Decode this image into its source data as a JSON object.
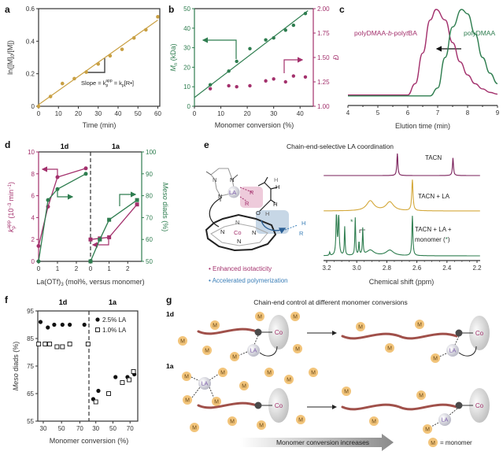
{
  "panel_labels": {
    "a": "a",
    "b": "b",
    "c": "c",
    "d": "d",
    "e": "e",
    "f": "f",
    "g": "g"
  },
  "colors": {
    "gold": "#c9a043",
    "green": "#2e7d4f",
    "magenta": "#a3306c",
    "purple": "#7a1f5a",
    "blue": "#3c7fb8",
    "chain": "#a0504a",
    "monomer": "#f2c47a"
  },
  "chart_data": [
    {
      "panel": "a",
      "type": "scatter",
      "xlabel": "Time (min)",
      "ylabel": {
        "pre": "ln([M]",
        "sub": "0",
        "post": "/[M])"
      },
      "xlim": [
        0,
        61
      ],
      "ylim": [
        0,
        0.6
      ],
      "xticks": [
        "0",
        "10",
        "20",
        "30",
        "40",
        "50",
        "60"
      ],
      "yticks": [
        "0",
        "0.2",
        "0.4",
        "0.6"
      ],
      "series": [
        {
          "x": [
            0,
            6,
            12,
            18,
            24,
            30,
            36,
            42,
            48,
            54,
            60
          ],
          "y": [
            0,
            0.06,
            0.14,
            0.17,
            0.21,
            0.26,
            0.31,
            0.35,
            0.42,
            0.47,
            0.55
          ],
          "color": "#c9a043"
        }
      ],
      "fit_line": {
        "x": [
          0,
          60
        ],
        "y": [
          0.01,
          0.53
        ]
      },
      "annotation": {
        "t1": "Slope = k",
        "s1": "p",
        "sup1": "app",
        "t2": " = k",
        "s2": "p",
        "t3": "[R•]"
      }
    },
    {
      "panel": "b",
      "type": "scatter",
      "xlabel": "Monomer conversion (%)",
      "ylabel": {
        "pre": "M",
        "sub": "n",
        "post": " (kDa)"
      },
      "ylabel_right": "Đ",
      "xlim": [
        0,
        45
      ],
      "ylim": [
        0,
        50
      ],
      "ylim_right": [
        1,
        2
      ],
      "xticks": [
        "0",
        "10",
        "20",
        "30",
        "40"
      ],
      "yticks": [
        "0",
        "10",
        "20",
        "30",
        "40",
        "50"
      ],
      "yticks_right": [
        "1.00",
        "1.25",
        "1.50",
        "1.75",
        "2.00"
      ],
      "series": [
        {
          "axis": "left",
          "x": [
            6,
            13,
            16,
            21,
            27,
            30,
            34.5,
            37.5,
            42
          ],
          "y": [
            11,
            18,
            23,
            29.5,
            34,
            35,
            39,
            41.5,
            47.5
          ],
          "color": "#2e7d4f"
        },
        {
          "axis": "right",
          "x": [
            6,
            13,
            16,
            21,
            27,
            30,
            34.5,
            37.5,
            42
          ],
          "y": [
            1.18,
            1.21,
            1.2,
            1.21,
            1.26,
            1.28,
            1.25,
            1.31,
            1.3
          ],
          "color": "#a3306c"
        }
      ],
      "fit_line": {
        "x": [
          0,
          43
        ],
        "y": [
          4.5,
          49
        ]
      }
    },
    {
      "panel": "c",
      "type": "line",
      "xlabel": "Elution time (min)",
      "xlim": [
        4,
        9
      ],
      "ylim": [
        -0.1,
        1
      ],
      "xticks": [
        "4",
        "5",
        "6",
        "7",
        "8",
        "9"
      ],
      "series": [
        {
          "name": "polyDMAA-b-polytBA",
          "color": "#a3306c",
          "x": [
            4,
            5,
            6,
            6.25,
            6.5,
            6.75,
            6.95,
            7.25,
            7.5,
            7.75,
            8,
            8.25,
            8.5,
            8.75,
            9
          ],
          "y": [
            0.02,
            0.02,
            0.02,
            0.15,
            0.5,
            0.88,
            1,
            0.88,
            0.62,
            0.4,
            0.25,
            0.15,
            0.09,
            0.05,
            0.03
          ]
        },
        {
          "name": "polyDMAA",
          "color": "#2e7d4f",
          "x": [
            4,
            5,
            6,
            6.75,
            7,
            7.25,
            7.5,
            7.8,
            8,
            8.25,
            8.5,
            8.75,
            9
          ],
          "y": [
            0.01,
            0.01,
            0.01,
            0.01,
            0.1,
            0.45,
            0.8,
            1,
            0.95,
            0.72,
            0.45,
            0.27,
            0.15
          ]
        }
      ],
      "legend": {
        "pink_label_parts": [
          "polyDMAA-",
          "b",
          "-poly",
          "t",
          "BA"
        ],
        "green_label": "polyDMAA"
      }
    },
    {
      "panel": "d",
      "type": "line",
      "xlabel": {
        "pre": "La(OTf)",
        "sub": "3",
        "post": " (mol%, versus monomer)"
      },
      "ylabel": {
        "pre": "k",
        "sub": "p",
        "sup": "app",
        "post": " (10",
        "sup2": "−3",
        "post2": " min",
        "sup3": "−1",
        "post3": ")"
      },
      "ylabel_right": {
        "italic": "Meso",
        "post": " diads (%)"
      },
      "ylim": [
        0,
        10
      ],
      "ylim_right": [
        50,
        100
      ],
      "yticks": [
        "0",
        "2",
        "4",
        "6",
        "8",
        "10"
      ],
      "yticks_right": [
        "50",
        "60",
        "70",
        "80",
        "90",
        "100"
      ],
      "groups": [
        {
          "name": "1d",
          "xlim": [
            0,
            2.75
          ],
          "xticks": [
            "0",
            "1",
            "2"
          ],
          "series": [
            {
              "axis": "left",
              "marker": "circle",
              "color": "#a3306c",
              "x": [
                0,
                0.5,
                1,
                2.5
              ],
              "y": [
                1.4,
                5.0,
                7.7,
                8.5
              ]
            },
            {
              "axis": "right",
              "marker": "circle",
              "color": "#2e7d4f",
              "x": [
                0,
                0.5,
                1,
                2.5
              ],
              "y": [
                50,
                78,
                83,
                90
              ]
            }
          ]
        },
        {
          "name": "1a",
          "xlim": [
            0,
            2.75
          ],
          "xticks": [
            "0",
            "1",
            "2"
          ],
          "series": [
            {
              "axis": "left",
              "marker": "square",
              "color": "#a3306c",
              "x": [
                0,
                0.5,
                1,
                2.5
              ],
              "y": [
                2.0,
                2.1,
                2.2,
                5.2
              ]
            },
            {
              "axis": "right",
              "marker": "square",
              "color": "#2e7d4f",
              "x": [
                0,
                0.5,
                1,
                2.5
              ],
              "y": [
                50,
                60,
                69,
                78
              ]
            }
          ]
        }
      ]
    },
    {
      "panel": "e",
      "type": "line",
      "title": "Chain-end-selective LA coordination",
      "xlabel": "Chemical shift (ppm)",
      "xlim": [
        3.2,
        2.2
      ],
      "xticks": [
        "3.2",
        "3.0",
        "2.8",
        "2.6",
        "2.4",
        "2.2"
      ],
      "series": [
        {
          "name": "TACN",
          "color": "#7a1f5a",
          "peaks": [
            {
              "ppm": 2.73,
              "h": 1.0,
              "w": 0.004
            },
            {
              "ppm": 2.36,
              "h": 0.8,
              "w": 0.004
            }
          ]
        },
        {
          "name": "TACN + LA",
          "color": "#d4a83a",
          "peaks": [
            {
              "ppm": 2.91,
              "h": 0.45,
              "w": 0.03
            },
            {
              "ppm": 2.78,
              "h": 0.4,
              "w": 0.03
            },
            {
              "ppm": 2.63,
              "h": 1.4,
              "w": 0.005
            }
          ]
        },
        {
          "name": "TACN + LA + monomer (*)",
          "color": "#2e7d4f",
          "peaks": [
            {
              "ppm": 3.18,
              "h": 0.15,
              "w": 0.003
            },
            {
              "ppm": 3.135,
              "h": 1.9,
              "w": 0.004
            },
            {
              "ppm": 3.12,
              "h": 1.9,
              "w": 0.004
            },
            {
              "ppm": 3.08,
              "h": 1.3,
              "w": 0.003
            },
            {
              "ppm": 3.01,
              "h": 1.7,
              "w": 0.003
            },
            {
              "ppm": 2.985,
              "h": 0.6,
              "w": 0.003
            },
            {
              "ppm": 2.96,
              "h": 1.2,
              "w": 0.003
            },
            {
              "ppm": 2.91,
              "h": 0.25,
              "w": 0.03
            },
            {
              "ppm": 2.78,
              "h": 0.25,
              "w": 0.03
            },
            {
              "ppm": 2.63,
              "h": 1.8,
              "w": 0.004
            }
          ]
        }
      ],
      "labels": {
        "tacn": "TACN",
        "tacn_la": "TACN + LA",
        "tacn_la_mono_1": "TACN + LA +",
        "tacn_la_mono_2": "monomer (",
        "star": "*",
        "close": ")"
      }
    },
    {
      "panel": "f",
      "type": "scatter",
      "xlabel": "Monomer conversion (%)",
      "ylabel": {
        "italic": "Meso",
        "post": " diads (%)"
      },
      "ylim": [
        55,
        95
      ],
      "yticks": [
        "55",
        "65",
        "75",
        "85",
        "95"
      ],
      "legend": [
        "2.5% LA",
        "1.0% LA"
      ],
      "groups": [
        {
          "name": "1d",
          "xlim": [
            24,
            80
          ],
          "xticks": [
            "30",
            "50",
            "70"
          ],
          "series": [
            {
              "name": "2.5% LA",
              "marker": "filled",
              "x": [
                27,
                35,
                42,
                51,
                59,
                75
              ],
              "y": [
                91,
                89,
                90,
                90,
                90,
                90
              ]
            },
            {
              "name": "1.0% LA",
              "marker": "open",
              "x": [
                25,
                32,
                37,
                45,
                51,
                59,
                79
              ],
              "y": [
                83,
                83,
                83,
                82,
                82,
                83,
                83
              ]
            }
          ]
        },
        {
          "name": "1a",
          "xlim": [
            22,
            79
          ],
          "xticks": [
            "30",
            "50",
            "70"
          ],
          "series": [
            {
              "name": "2.5% LA",
              "marker": "filled",
              "x": [
                27,
                33,
                53,
                67,
                75
              ],
              "y": [
                63,
                66,
                71,
                71,
                72
              ]
            },
            {
              "name": "1.0% LA",
              "marker": "open",
              "x": [
                30,
                45,
                61,
                69,
                74
              ],
              "y": [
                62,
                65,
                69,
                70,
                73
              ]
            }
          ]
        }
      ]
    }
  ],
  "e": {
    "bullets": [
      "• Enhanced isotacticity",
      "• Accelerated polymerization"
    ],
    "atoms": {
      "N": "N",
      "Co": "Co",
      "LA": "LA",
      "R": "R",
      "H": "H",
      "O": "O"
    }
  },
  "g": {
    "title": "Chain-end control at different monomer conversions",
    "row_1d": "1d",
    "row_1a": "1a",
    "monomer": "M",
    "la": "LA",
    "co": "Co",
    "arrow_label": "Monomer conversion increases",
    "legend_text": "= monomer"
  }
}
